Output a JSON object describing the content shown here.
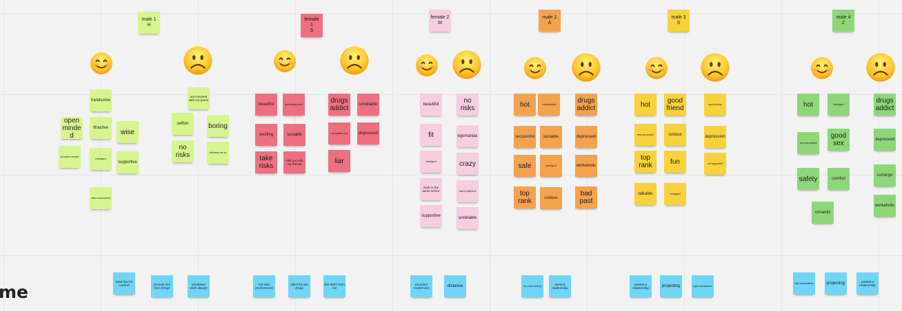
{
  "colors": {
    "male1": "#d7f58f",
    "female1": "#ee6f80",
    "female2": "#f7cde0",
    "male2": "#f4a24e",
    "male3": "#f8d23c",
    "male4": "#8fd679",
    "blue": "#70d5f7",
    "canvas": "#f2f2f2"
  },
  "groups": [
    {
      "id": "male1",
      "header": "male 1\nH",
      "happy": [
        "handsome",
        "fit/active",
        "open minded",
        "wise",
        "provided comfort",
        "intelligent",
        "supportive",
        "safe environment"
      ],
      "sad": [
        "not involved with my peers",
        "selfish",
        "boring",
        "no risks",
        "criticised me lot"
      ]
    },
    {
      "id": "female1",
      "header": "female\n1\nS",
      "happy": [
        "beautiful",
        "fascinating work",
        "exciting",
        "sociable",
        "take risks",
        "chill out with my friends"
      ],
      "sad": [
        "drugs addict",
        "unreliable",
        "compulsive liar",
        "depressed",
        "liar"
      ]
    },
    {
      "id": "female2",
      "header": "female 2\nM",
      "happy": [
        "beautiful",
        "fit",
        "intelligent",
        "work in the same sector",
        "supportive"
      ],
      "sad": [
        "no risks",
        "egomaniac",
        "crazy",
        "had a boyfriend",
        "unreliable"
      ]
    },
    {
      "id": "male2",
      "header": "male 2\nA",
      "happy": [
        "hot",
        "independent",
        "successful",
        "sociable",
        "safe",
        "intelligent",
        "top rank",
        "curious"
      ],
      "sad": [
        "drugs addict",
        "depressed",
        "workaholic",
        "bad past"
      ]
    },
    {
      "id": "male3",
      "header": "male 3\nS",
      "happy": [
        "hot",
        "good friend",
        "very successful",
        "curious",
        "top rank",
        "fun",
        "talkable",
        "intelligent"
      ],
      "sad": [
        "work priority",
        "depression",
        "not supportive"
      ]
    },
    {
      "id": "male4",
      "header": "male 4\nZ",
      "happy": [
        "hot",
        "intelligent",
        "very successful",
        "good sex",
        "safety",
        "comfort",
        "romantic"
      ],
      "sad": [
        "drugs addict",
        "depressed",
        "come/go",
        "workaholic"
      ]
    }
  ],
  "bottom": [
    "used him for comfort",
    "exclude him from things",
    "prioritised work always",
    "not safe environment",
    "didn't let use drugs",
    "she didn't trust me",
    "provided excitement",
    "distance",
    "too much texting",
    "wanted relationship",
    "wanted a relationship",
    "projecting",
    "high expectations",
    "high expectations",
    "projecting",
    "wanted a relationship"
  ],
  "label": "me",
  "icons": {
    "happy": "smiling-face-icon",
    "sad": "frowning-face-icon"
  }
}
